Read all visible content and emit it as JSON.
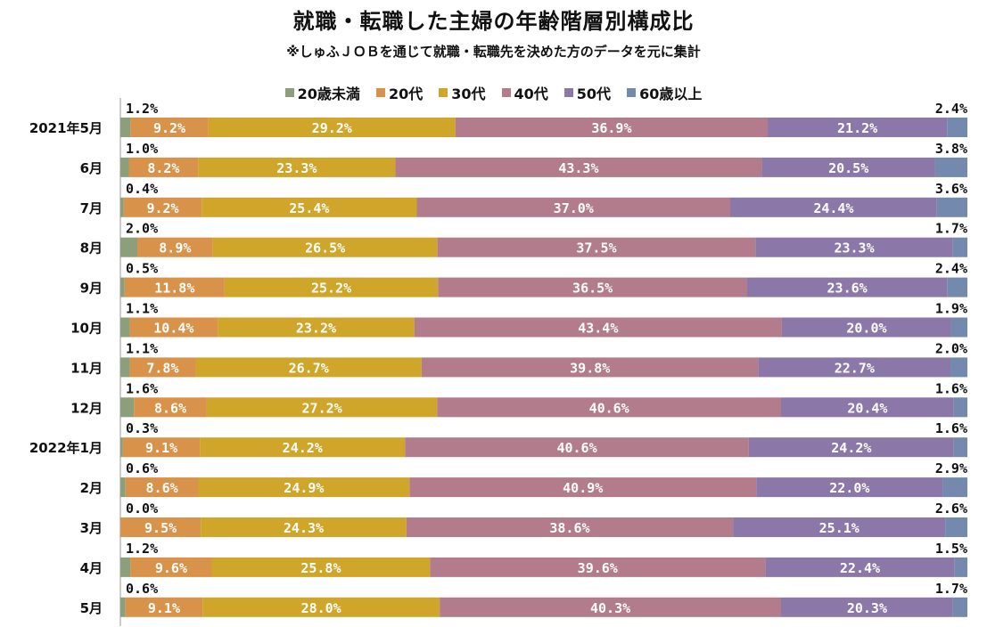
{
  "title": "就職・転職した主婦の年齢階層別構成比",
  "subtitle": "※しゅふＪＯＢを通じて就職・転職先を決めた方のデータを元に集計",
  "colors": {
    "20歳未満": "#8d9e7a",
    "20代": "#d8924a",
    "30代": "#cfa52a",
    "40代": "#b37c8c",
    "50代": "#8b78a8",
    "60歳以上": "#7389ad"
  },
  "chart_data": {
    "type": "bar",
    "orientation": "horizontal",
    "stacked": true,
    "normalized": true,
    "title": "就職・転職した主婦の年齢階層別構成比",
    "legend_position": "top",
    "categories": [
      "2021年5月",
      "6月",
      "7月",
      "8月",
      "9月",
      "10月",
      "11月",
      "12月",
      "2022年1月",
      "2月",
      "3月",
      "4月",
      "5月"
    ],
    "series": [
      {
        "name": "20歳未満",
        "labels": [
          "1.2%",
          "1.0%",
          "0.4%",
          "2.0%",
          "0.5%",
          "1.1%",
          "1.1%",
          "1.6%",
          "0.3%",
          "0.6%",
          "0.0%",
          "1.2%",
          "0.6%"
        ],
        "values": [
          1.2,
          1.0,
          0.4,
          2.0,
          0.5,
          1.1,
          1.1,
          1.6,
          0.3,
          0.6,
          0.0,
          1.2,
          0.6
        ]
      },
      {
        "name": "20代",
        "labels": [
          "9.2%",
          "8.2%",
          "9.2%",
          "8.9%",
          "11.8%",
          "10.4%",
          "7.8%",
          "8.6%",
          "9.1%",
          "8.6%",
          "9.5%",
          "9.6%",
          "9.1%"
        ],
        "values": [
          9.2,
          8.2,
          9.2,
          8.9,
          11.8,
          10.4,
          7.8,
          8.6,
          9.1,
          8.6,
          9.5,
          9.6,
          9.1
        ]
      },
      {
        "name": "30代",
        "labels": [
          "29.2%",
          "23.3%",
          "25.4%",
          "26.5%",
          "25.2%",
          "23.2%",
          "26.7%",
          "27.2%",
          "24.2%",
          "24.9%",
          "24.3%",
          "25.8%",
          "28.0%"
        ],
        "values": [
          29.2,
          23.3,
          25.4,
          26.5,
          25.2,
          23.2,
          26.7,
          27.2,
          24.2,
          24.9,
          24.3,
          25.8,
          28.0
        ]
      },
      {
        "name": "40代",
        "labels": [
          "36.9%",
          "43.3%",
          "37.0%",
          "37.5%",
          "36.5%",
          "43.4%",
          "39.8%",
          "40.6%",
          "40.6%",
          "40.9%",
          "38.6%",
          "39.6%",
          "40.3%"
        ],
        "values": [
          36.9,
          43.3,
          37.0,
          37.5,
          36.5,
          43.4,
          39.8,
          40.6,
          40.6,
          40.9,
          38.6,
          39.6,
          40.3
        ]
      },
      {
        "name": "50代",
        "labels": [
          "21.2%",
          "20.5%",
          "24.4%",
          "23.3%",
          "23.6%",
          "20.0%",
          "22.7%",
          "20.4%",
          "24.2%",
          "22.0%",
          "25.1%",
          "22.4%",
          "20.3%"
        ],
        "values": [
          21.2,
          20.5,
          24.4,
          23.3,
          23.6,
          20.0,
          22.7,
          20.4,
          24.2,
          22.0,
          25.1,
          22.4,
          20.3
        ]
      },
      {
        "name": "60歳以上",
        "labels": [
          "2.4%",
          "3.8%",
          "3.6%",
          "1.7%",
          "2.4%",
          "1.9%",
          "2.0%",
          "1.6%",
          "1.6%",
          "2.9%",
          "2.6%",
          "1.5%",
          "1.7%"
        ],
        "values": [
          2.4,
          3.8,
          3.6,
          1.7,
          2.4,
          1.9,
          2.0,
          1.6,
          1.6,
          2.9,
          2.6,
          1.5,
          1.7
        ]
      }
    ]
  }
}
